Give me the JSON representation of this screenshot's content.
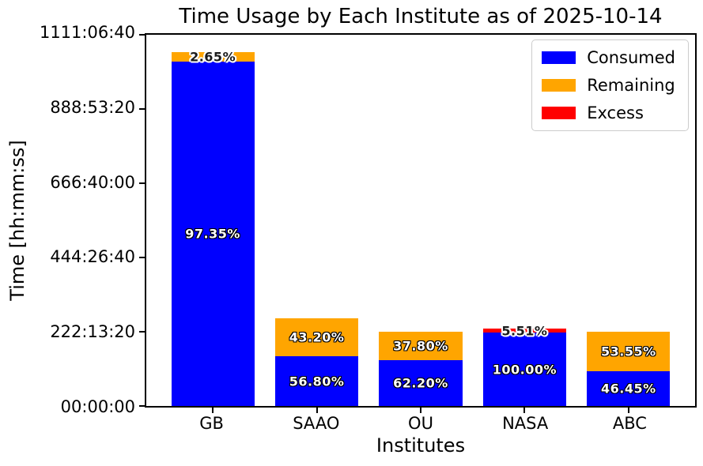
{
  "chart_data": {
    "type": "stacked-bar",
    "title": "Time Usage by Each Institute as of 2025-10-14",
    "xlabel": "Institutes",
    "ylabel": "Time [hh:mm:ss]",
    "categories": [
      "GB",
      "SAAO",
      "OU",
      "NASA",
      "ABC"
    ],
    "series": [
      {
        "name": "Consumed",
        "color": "#0000ff",
        "values_hours": [
          1022.2,
          147.7,
          136.8,
          217.0,
          102.2
        ],
        "labels": [
          "97.35%",
          "56.80%",
          "62.20%",
          "100.00%",
          "46.45%"
        ]
      },
      {
        "name": "Remaining",
        "color": "#ffa500",
        "values_hours": [
          27.8,
          112.3,
          83.2,
          0,
          117.8
        ],
        "labels": [
          "2.65%",
          "43.20%",
          "37.80%",
          "",
          "53.55%"
        ]
      },
      {
        "name": "Excess",
        "color": "#ff0000",
        "values_hours": [
          0,
          0,
          0,
          12.0,
          0
        ],
        "labels": [
          "",
          "",
          "",
          "5.51%",
          ""
        ]
      }
    ],
    "totals_hours": [
      1050,
      260,
      220,
      229,
      220
    ],
    "ylim_hours": [
      0,
      1111.1111
    ],
    "yticks": [
      {
        "hours": 0.0,
        "label": "00:00:00"
      },
      {
        "hours": 222.2222,
        "label": "222:13:20"
      },
      {
        "hours": 444.4444,
        "label": "444:26:40"
      },
      {
        "hours": 666.6667,
        "label": "666:40:00"
      },
      {
        "hours": 888.8889,
        "label": "888:53:20"
      },
      {
        "hours": 1111.1111,
        "label": "1111:06:40"
      }
    ],
    "grid": false,
    "legend": {
      "position": "upper right",
      "entries": [
        {
          "label": "Consumed",
          "color": "#0000ff"
        },
        {
          "label": "Remaining",
          "color": "#ffa500"
        },
        {
          "label": "Excess",
          "color": "#ff0000"
        }
      ]
    }
  }
}
